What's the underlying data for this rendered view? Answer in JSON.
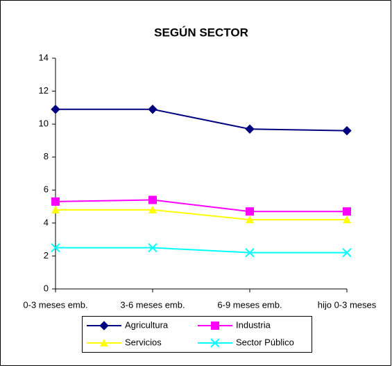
{
  "chart_data": {
    "type": "line",
    "title": "SEGÚN SECTOR",
    "categories": [
      "0-3 meses emb.",
      "3-6 meses emb.",
      "6-9 meses emb.",
      "hijo 0-3 meses"
    ],
    "series": [
      {
        "name": "Agricultura",
        "color": "#000080",
        "marker": "diamond",
        "values": [
          10.9,
          10.9,
          9.7,
          9.6
        ]
      },
      {
        "name": "Industria",
        "color": "#FF00FF",
        "marker": "square",
        "values": [
          5.3,
          5.4,
          4.7,
          4.7
        ]
      },
      {
        "name": "Servicios",
        "color": "#FFFF00",
        "marker": "triangle",
        "values": [
          4.8,
          4.8,
          4.2,
          4.2
        ]
      },
      {
        "name": "Sector Público",
        "color": "#00FFFF",
        "marker": "x",
        "values": [
          2.5,
          2.5,
          2.2,
          2.2
        ]
      }
    ],
    "ylim": [
      0,
      14
    ],
    "yticks": [
      0,
      2,
      4,
      6,
      8,
      10,
      12,
      14
    ],
    "grid": false
  }
}
